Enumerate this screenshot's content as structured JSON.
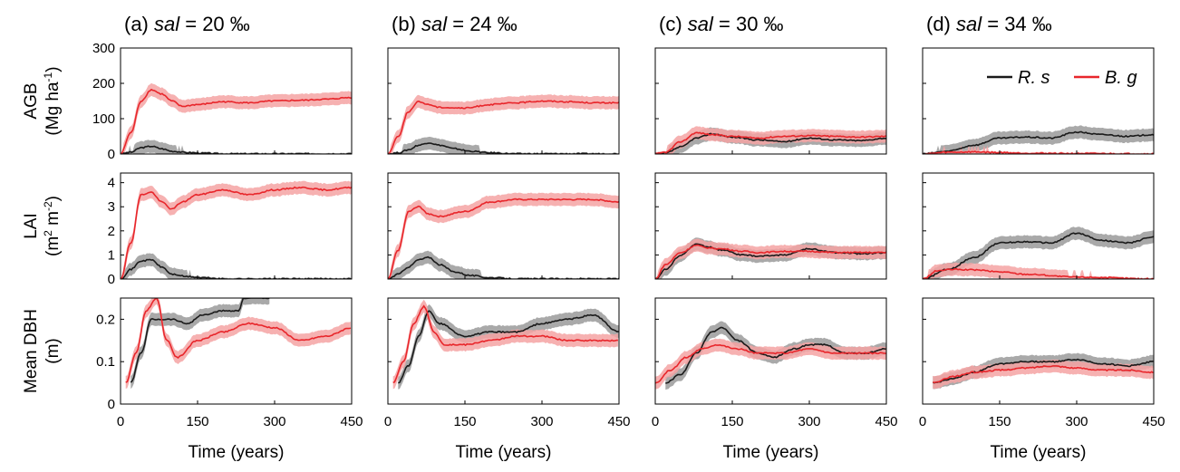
{
  "columns": [
    {
      "label": "(a)",
      "var": "sal",
      "eq": "= 20 ‰"
    },
    {
      "label": "(b)",
      "var": "sal",
      "eq": "= 24 ‰"
    },
    {
      "label": "(c)",
      "var": "sal",
      "eq": "= 30 ‰"
    },
    {
      "label": "(d)",
      "var": "sal",
      "eq": "= 34 ‰"
    }
  ],
  "rows": [
    {
      "ylabel1": "AGB",
      "ylabel2": "(Mg ha",
      "ylabel2_sup": "-1",
      "ylabel2_end": ")",
      "ticks": [
        "0",
        "100",
        "200",
        "300"
      ],
      "ylim": [
        0,
        300
      ]
    },
    {
      "ylabel1": "LAI",
      "ylabel2": "(m",
      "ylabel2_sup": "2",
      "ylabel2_mid": " m",
      "ylabel2_sup2": "-2",
      "ylabel2_end": ")",
      "ticks": [
        "0",
        "1",
        "2",
        "3",
        "4"
      ],
      "ylim": [
        0,
        4.4
      ]
    },
    {
      "ylabel1": "Mean DBH",
      "ylabel2": "(m)",
      "ticks": [
        "0",
        "0.1",
        "0.2"
      ],
      "ylim": [
        0,
        0.25
      ]
    }
  ],
  "xticks": [
    "0",
    "150",
    "300",
    "450"
  ],
  "xlabel": "Time (years)",
  "legend": {
    "rs": "R. s",
    "bg": "B. g"
  },
  "colors": {
    "rs": "#1a1a1a",
    "bg": "#e8262b",
    "rs_band": "#9a9a9a",
    "bg_band": "#f4a3a3"
  },
  "chart_data": {
    "type": "line",
    "x_unit": "years",
    "xlim": [
      0,
      450
    ],
    "panels": [
      {
        "row": "AGB",
        "col": "a",
        "series": [
          {
            "name": "R. s",
            "x": [
              0,
              20,
              40,
              60,
              80,
              100,
              130,
              160,
              200,
              450
            ],
            "y": [
              0,
              5,
              18,
              22,
              15,
              8,
              4,
              2,
              0,
              0
            ]
          },
          {
            "name": "B. g",
            "x": [
              0,
              20,
              40,
              60,
              80,
              100,
              120,
              150,
              200,
              250,
              300,
              350,
              400,
              450
            ],
            "y": [
              0,
              60,
              150,
              182,
              170,
              150,
              135,
              140,
              148,
              145,
              150,
              152,
              155,
              160
            ]
          }
        ]
      },
      {
        "row": "AGB",
        "col": "b",
        "series": [
          {
            "name": "R. s",
            "x": [
              0,
              20,
              40,
              60,
              80,
              100,
              130,
              160,
              200,
              250,
              450
            ],
            "y": [
              0,
              3,
              12,
              25,
              32,
              25,
              15,
              8,
              3,
              0,
              0
            ]
          },
          {
            "name": "B. g",
            "x": [
              0,
              20,
              40,
              60,
              80,
              100,
              150,
              200,
              250,
              300,
              350,
              400,
              450
            ],
            "y": [
              0,
              50,
              120,
              148,
              140,
              132,
              130,
              140,
              145,
              150,
              148,
              145,
              145
            ]
          }
        ]
      },
      {
        "row": "AGB",
        "col": "c",
        "series": [
          {
            "name": "R. s",
            "x": [
              0,
              20,
              50,
              80,
              110,
              150,
              200,
              250,
              300,
              350,
              400,
              450
            ],
            "y": [
              0,
              3,
              20,
              45,
              57,
              48,
              40,
              35,
              45,
              40,
              38,
              45
            ]
          },
          {
            "name": "B. g",
            "x": [
              0,
              20,
              50,
              80,
              110,
              150,
              200,
              250,
              300,
              350,
              400,
              450
            ],
            "y": [
              0,
              5,
              35,
              60,
              55,
              50,
              45,
              50,
              52,
              50,
              48,
              50
            ]
          }
        ]
      },
      {
        "row": "AGB",
        "col": "d",
        "series": [
          {
            "name": "R. s",
            "x": [
              0,
              50,
              100,
              150,
              200,
              250,
              300,
              350,
              400,
              450
            ],
            "y": [
              0,
              8,
              25,
              45,
              48,
              45,
              62,
              55,
              50,
              55
            ]
          },
          {
            "name": "B. g",
            "x": [
              0,
              50,
              100,
              150,
              200,
              300,
              450
            ],
            "y": [
              0,
              5,
              6,
              4,
              2,
              1,
              0
            ]
          }
        ]
      },
      {
        "row": "LAI",
        "col": "a",
        "series": [
          {
            "name": "R. s",
            "x": [
              0,
              20,
              40,
              60,
              80,
              100,
              130,
              160,
              200,
              450
            ],
            "y": [
              0,
              0.4,
              0.75,
              0.8,
              0.5,
              0.2,
              0.1,
              0.05,
              0,
              0
            ]
          },
          {
            "name": "B. g",
            "x": [
              0,
              20,
              40,
              60,
              80,
              100,
              120,
              150,
              200,
              250,
              300,
              350,
              400,
              450
            ],
            "y": [
              0,
              1.5,
              3.5,
              3.6,
              3.2,
              2.9,
              3.2,
              3.5,
              3.7,
              3.5,
              3.7,
              3.8,
              3.7,
              3.8
            ]
          }
        ]
      },
      {
        "row": "LAI",
        "col": "b",
        "series": [
          {
            "name": "R. s",
            "x": [
              0,
              20,
              40,
              60,
              80,
              100,
              130,
              160,
              200,
              250,
              450
            ],
            "y": [
              0,
              0.2,
              0.5,
              0.8,
              0.9,
              0.6,
              0.3,
              0.15,
              0.05,
              0,
              0
            ]
          },
          {
            "name": "B. g",
            "x": [
              0,
              20,
              40,
              60,
              80,
              100,
              150,
              200,
              250,
              300,
              350,
              400,
              450
            ],
            "y": [
              0,
              1.2,
              2.8,
              3.0,
              2.7,
              2.6,
              2.8,
              3.2,
              3.3,
              3.3,
              3.3,
              3.3,
              3.2
            ]
          }
        ]
      },
      {
        "row": "LAI",
        "col": "c",
        "series": [
          {
            "name": "R. s",
            "x": [
              0,
              20,
              50,
              80,
              100,
              130,
              170,
              200,
              250,
              300,
              350,
              400,
              450
            ],
            "y": [
              0,
              0.4,
              1.0,
              1.45,
              1.35,
              1.2,
              1.0,
              0.95,
              1.0,
              1.25,
              1.1,
              1.05,
              1.1
            ]
          },
          {
            "name": "B. g",
            "x": [
              0,
              20,
              50,
              80,
              100,
              130,
              170,
              200,
              250,
              300,
              350,
              400,
              450
            ],
            "y": [
              0,
              0.6,
              1.1,
              1.4,
              1.3,
              1.25,
              1.15,
              1.1,
              1.15,
              1.15,
              1.1,
              1.1,
              1.1
            ]
          }
        ]
      },
      {
        "row": "LAI",
        "col": "d",
        "series": [
          {
            "name": "R. s",
            "x": [
              0,
              50,
              100,
              150,
              200,
              250,
              300,
              350,
              400,
              450
            ],
            "y": [
              0,
              0.4,
              0.9,
              1.5,
              1.55,
              1.5,
              1.9,
              1.6,
              1.5,
              1.75
            ]
          },
          {
            "name": "B. g",
            "x": [
              0,
              30,
              60,
              100,
              150,
              200,
              300,
              450
            ],
            "y": [
              0,
              0.35,
              0.4,
              0.38,
              0.3,
              0.2,
              0.08,
              0
            ]
          }
        ]
      },
      {
        "row": "Mean DBH",
        "col": "a",
        "series": [
          {
            "name": "R. s",
            "x": [
              20,
              40,
              60,
              80,
              100,
              130,
              160,
              200,
              230,
              240,
              270,
              290
            ],
            "y": [
              0.05,
              0.12,
              0.2,
              0.2,
              0.2,
              0.19,
              0.21,
              0.22,
              0.22,
              0.25,
              0.25,
              0.25
            ]
          },
          {
            "name": "B. g",
            "x": [
              10,
              30,
              50,
              70,
              90,
              110,
              150,
              200,
              250,
              300,
              350,
              400,
              450
            ],
            "y": [
              0.05,
              0.12,
              0.22,
              0.25,
              0.15,
              0.11,
              0.15,
              0.17,
              0.19,
              0.18,
              0.15,
              0.16,
              0.18
            ]
          }
        ]
      },
      {
        "row": "Mean DBH",
        "col": "b",
        "series": [
          {
            "name": "R. s",
            "x": [
              20,
              40,
              60,
              80,
              100,
              150,
              200,
              250,
              300,
              350,
              400,
              450
            ],
            "y": [
              0.05,
              0.09,
              0.16,
              0.22,
              0.19,
              0.16,
              0.17,
              0.17,
              0.19,
              0.2,
              0.21,
              0.17
            ]
          },
          {
            "name": "B. g",
            "x": [
              10,
              30,
              50,
              70,
              90,
              110,
              150,
              200,
              250,
              300,
              350,
              400,
              450
            ],
            "y": [
              0.05,
              0.1,
              0.19,
              0.23,
              0.17,
              0.14,
              0.14,
              0.15,
              0.16,
              0.16,
              0.15,
              0.15,
              0.15
            ]
          }
        ]
      },
      {
        "row": "Mean DBH",
        "col": "c",
        "series": [
          {
            "name": "R. s",
            "x": [
              20,
              50,
              80,
              110,
              130,
              160,
              200,
              230,
              270,
              300,
              330,
              370,
              410,
              450
            ],
            "y": [
              0.05,
              0.07,
              0.12,
              0.17,
              0.18,
              0.15,
              0.12,
              0.11,
              0.13,
              0.14,
              0.14,
              0.12,
              0.12,
              0.13
            ]
          },
          {
            "name": "B. g",
            "x": [
              0,
              30,
              60,
              90,
              120,
              160,
              200,
              250,
              300,
              350,
              400,
              450
            ],
            "y": [
              0.05,
              0.08,
              0.11,
              0.13,
              0.14,
              0.13,
              0.12,
              0.12,
              0.13,
              0.12,
              0.12,
              0.12
            ]
          }
        ]
      },
      {
        "row": "Mean DBH",
        "col": "d",
        "series": [
          {
            "name": "R. s",
            "x": [
              20,
              60,
              100,
              150,
              200,
              250,
              300,
              350,
              400,
              450
            ],
            "y": [
              0.05,
              0.06,
              0.075,
              0.095,
              0.1,
              0.1,
              0.105,
              0.095,
              0.09,
              0.1
            ]
          },
          {
            "name": "B. g",
            "x": [
              20,
              60,
              100,
              150,
              200,
              250,
              300,
              350,
              400,
              450
            ],
            "y": [
              0.05,
              0.065,
              0.075,
              0.08,
              0.085,
              0.09,
              0.085,
              0.08,
              0.08,
              0.075
            ]
          }
        ]
      }
    ]
  }
}
